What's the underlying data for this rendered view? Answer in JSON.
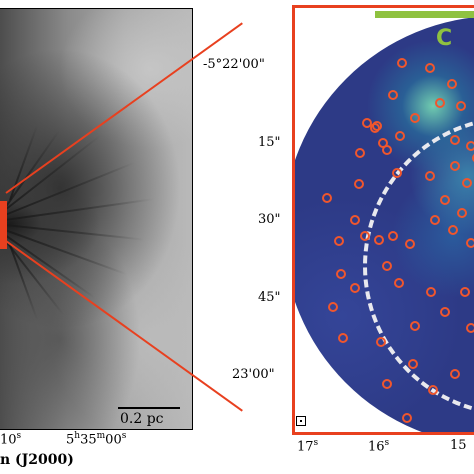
{
  "left_panel": {
    "ra_ticks": [
      {
        "main": "10",
        "sup": "s"
      },
      {
        "main": "5",
        "sup_h": "h",
        "mid": "35",
        "sup_m": "m",
        "end": "00",
        "sup_s": "s"
      }
    ],
    "axis_label_partial": "n (J2000)",
    "scalebar_label": "0.2 pc"
  },
  "right_panel": {
    "dec_ticks": [
      "-5°22'00\"",
      "15\"",
      "30\"",
      "45\"",
      "23'00\""
    ],
    "ra_ticks": [
      {
        "main": "17",
        "sup": "s"
      },
      {
        "main": "16",
        "sup": "s"
      },
      {
        "main": "15"
      }
    ],
    "corner_glyph": "C"
  },
  "colors": {
    "outline_red": "#e8401f",
    "source_marker": "#f0562d",
    "scalebar_green": "#8fc240",
    "map_blue": "#2d3a86"
  }
}
